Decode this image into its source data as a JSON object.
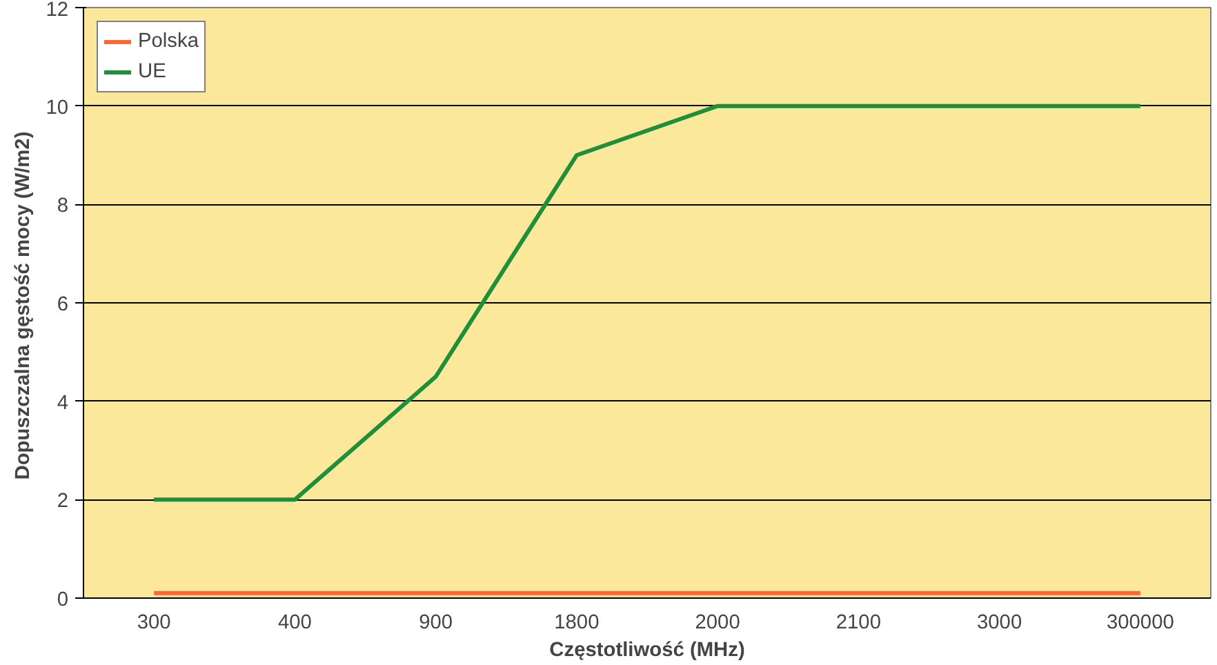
{
  "chart_data": {
    "type": "line",
    "xlabel": "Częstotliwość (MHz)",
    "ylabel": "Dopuszczalna gęstość mocy  (W/m2)",
    "categories": [
      "300",
      "400",
      "900",
      "1800",
      "2000",
      "2100",
      "3000",
      "300000"
    ],
    "series": [
      {
        "name": "Polska",
        "color": "#ff6633",
        "values": [
          0.1,
          0.1,
          0.1,
          0.1,
          0.1,
          0.1,
          0.1,
          0.1
        ]
      },
      {
        "name": "UE",
        "color": "#1f8f3a",
        "values": [
          2,
          2,
          4.5,
          9,
          10,
          10,
          10,
          10
        ]
      }
    ],
    "ylim": [
      0,
      12
    ],
    "yticks": [
      0,
      2,
      4,
      6,
      8,
      10,
      12
    ],
    "grid": "y",
    "legend": "top left",
    "marker": "none",
    "line_style": "solid"
  }
}
